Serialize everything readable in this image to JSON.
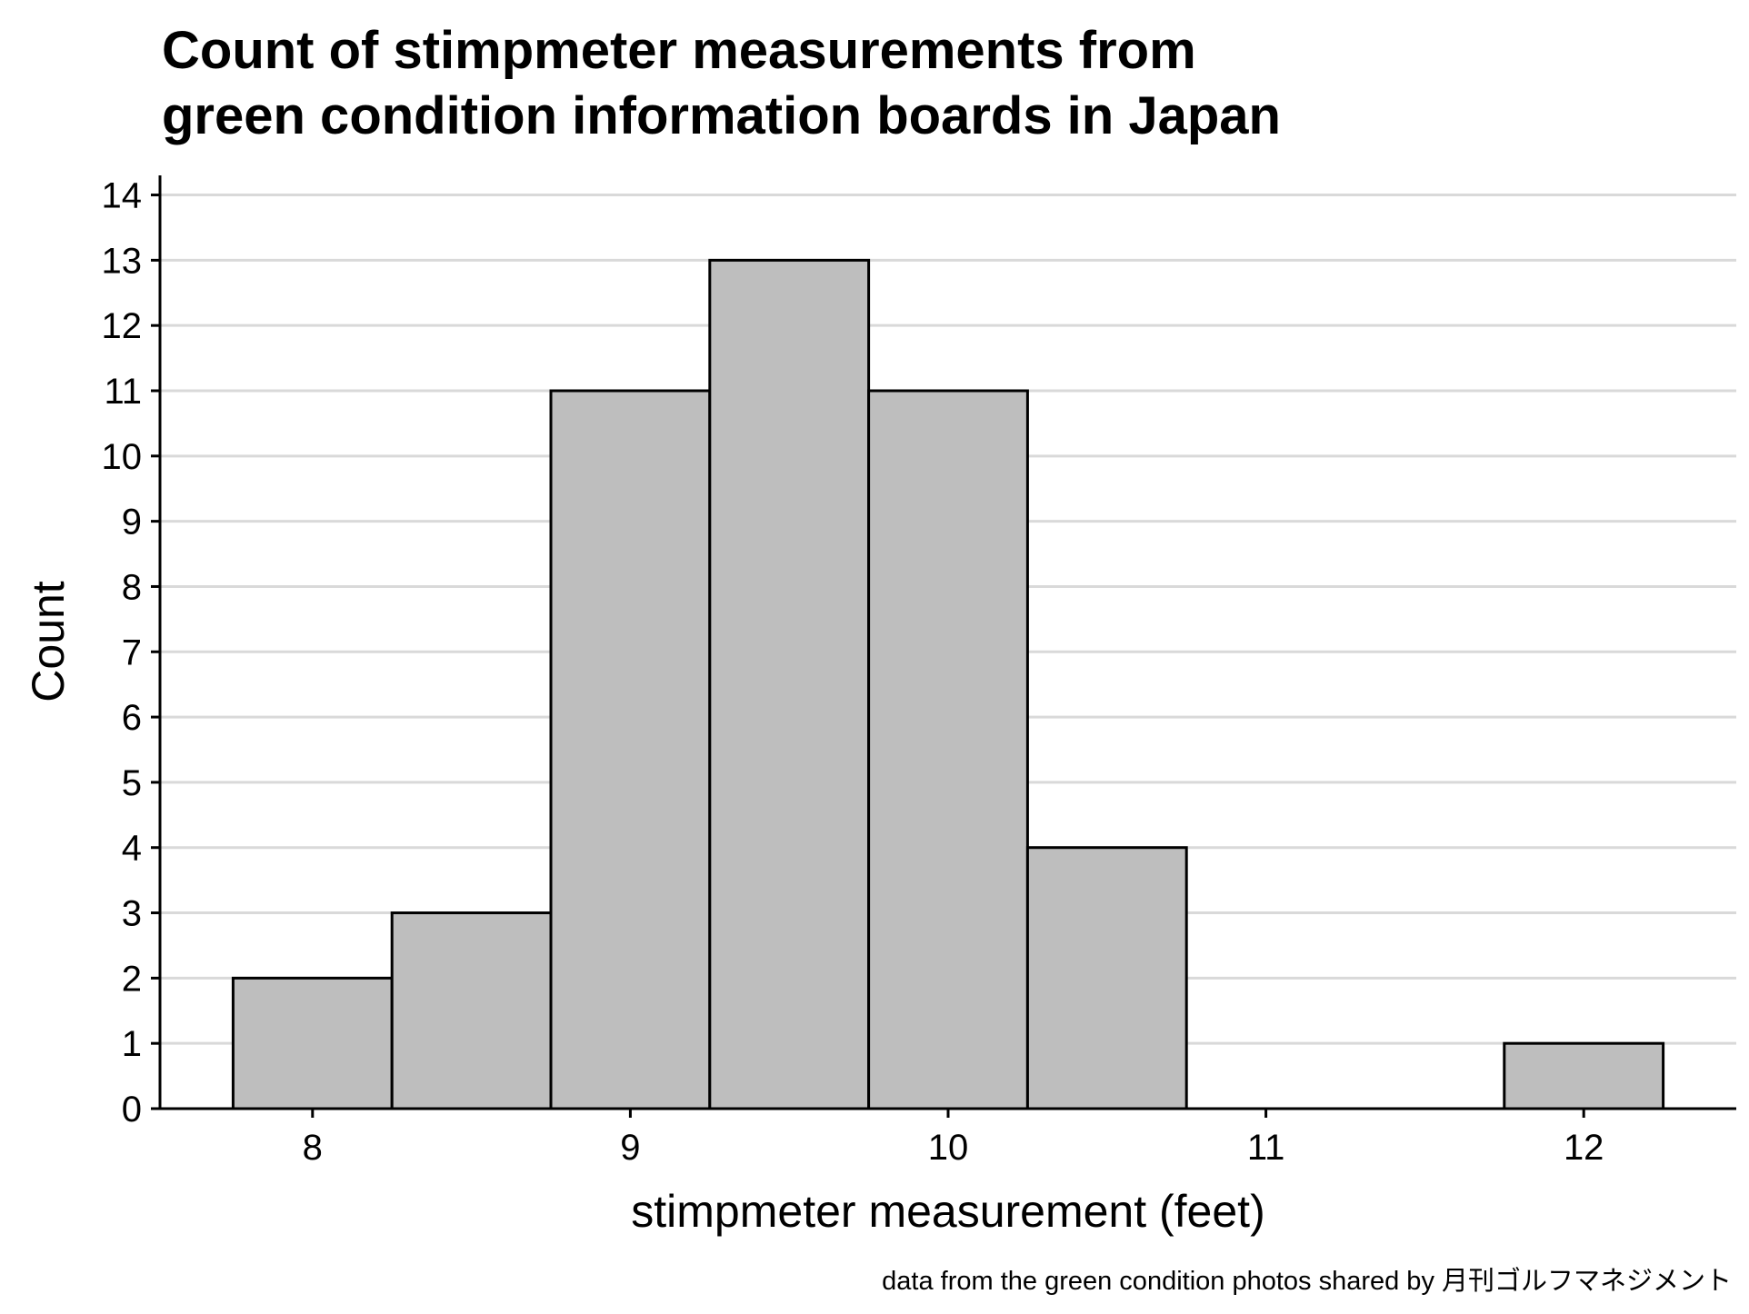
{
  "chart_data": {
    "type": "bar",
    "title": "Count of stimpmeter measurements from green condition information boards in Japan",
    "title_lines": [
      "Count of stimpmeter measurements from",
      "green condition information boards in Japan"
    ],
    "xlabel": "stimpmeter measurement (feet)",
    "ylabel": "Count",
    "caption": "data from the green condition photos shared by 月刊ゴルフマネジメント",
    "bins": [
      {
        "x_start": 7.75,
        "x_end": 8.25,
        "count": 2
      },
      {
        "x_start": 8.25,
        "x_end": 8.75,
        "count": 3
      },
      {
        "x_start": 8.75,
        "x_end": 9.25,
        "count": 11
      },
      {
        "x_start": 9.25,
        "x_end": 9.75,
        "count": 13
      },
      {
        "x_start": 9.75,
        "x_end": 10.25,
        "count": 11
      },
      {
        "x_start": 10.25,
        "x_end": 10.75,
        "count": 4
      },
      {
        "x_start": 10.75,
        "x_end": 11.25,
        "count": 0
      },
      {
        "x_start": 11.25,
        "x_end": 11.75,
        "count": 0
      },
      {
        "x_start": 11.75,
        "x_end": 12.25,
        "count": 1
      }
    ],
    "x_ticks": [
      8,
      9,
      10,
      11,
      12
    ],
    "y_ticks": [
      0,
      1,
      2,
      3,
      4,
      5,
      6,
      7,
      8,
      9,
      10,
      11,
      12,
      13,
      14
    ],
    "xlim": [
      7.52,
      12.48
    ],
    "ylim": [
      0,
      14.3
    ],
    "grid": "horizontal major",
    "legend": "none",
    "bar_fill": "#bebebe",
    "bar_stroke": "#000000",
    "grid_color": "#d9d9d9"
  }
}
